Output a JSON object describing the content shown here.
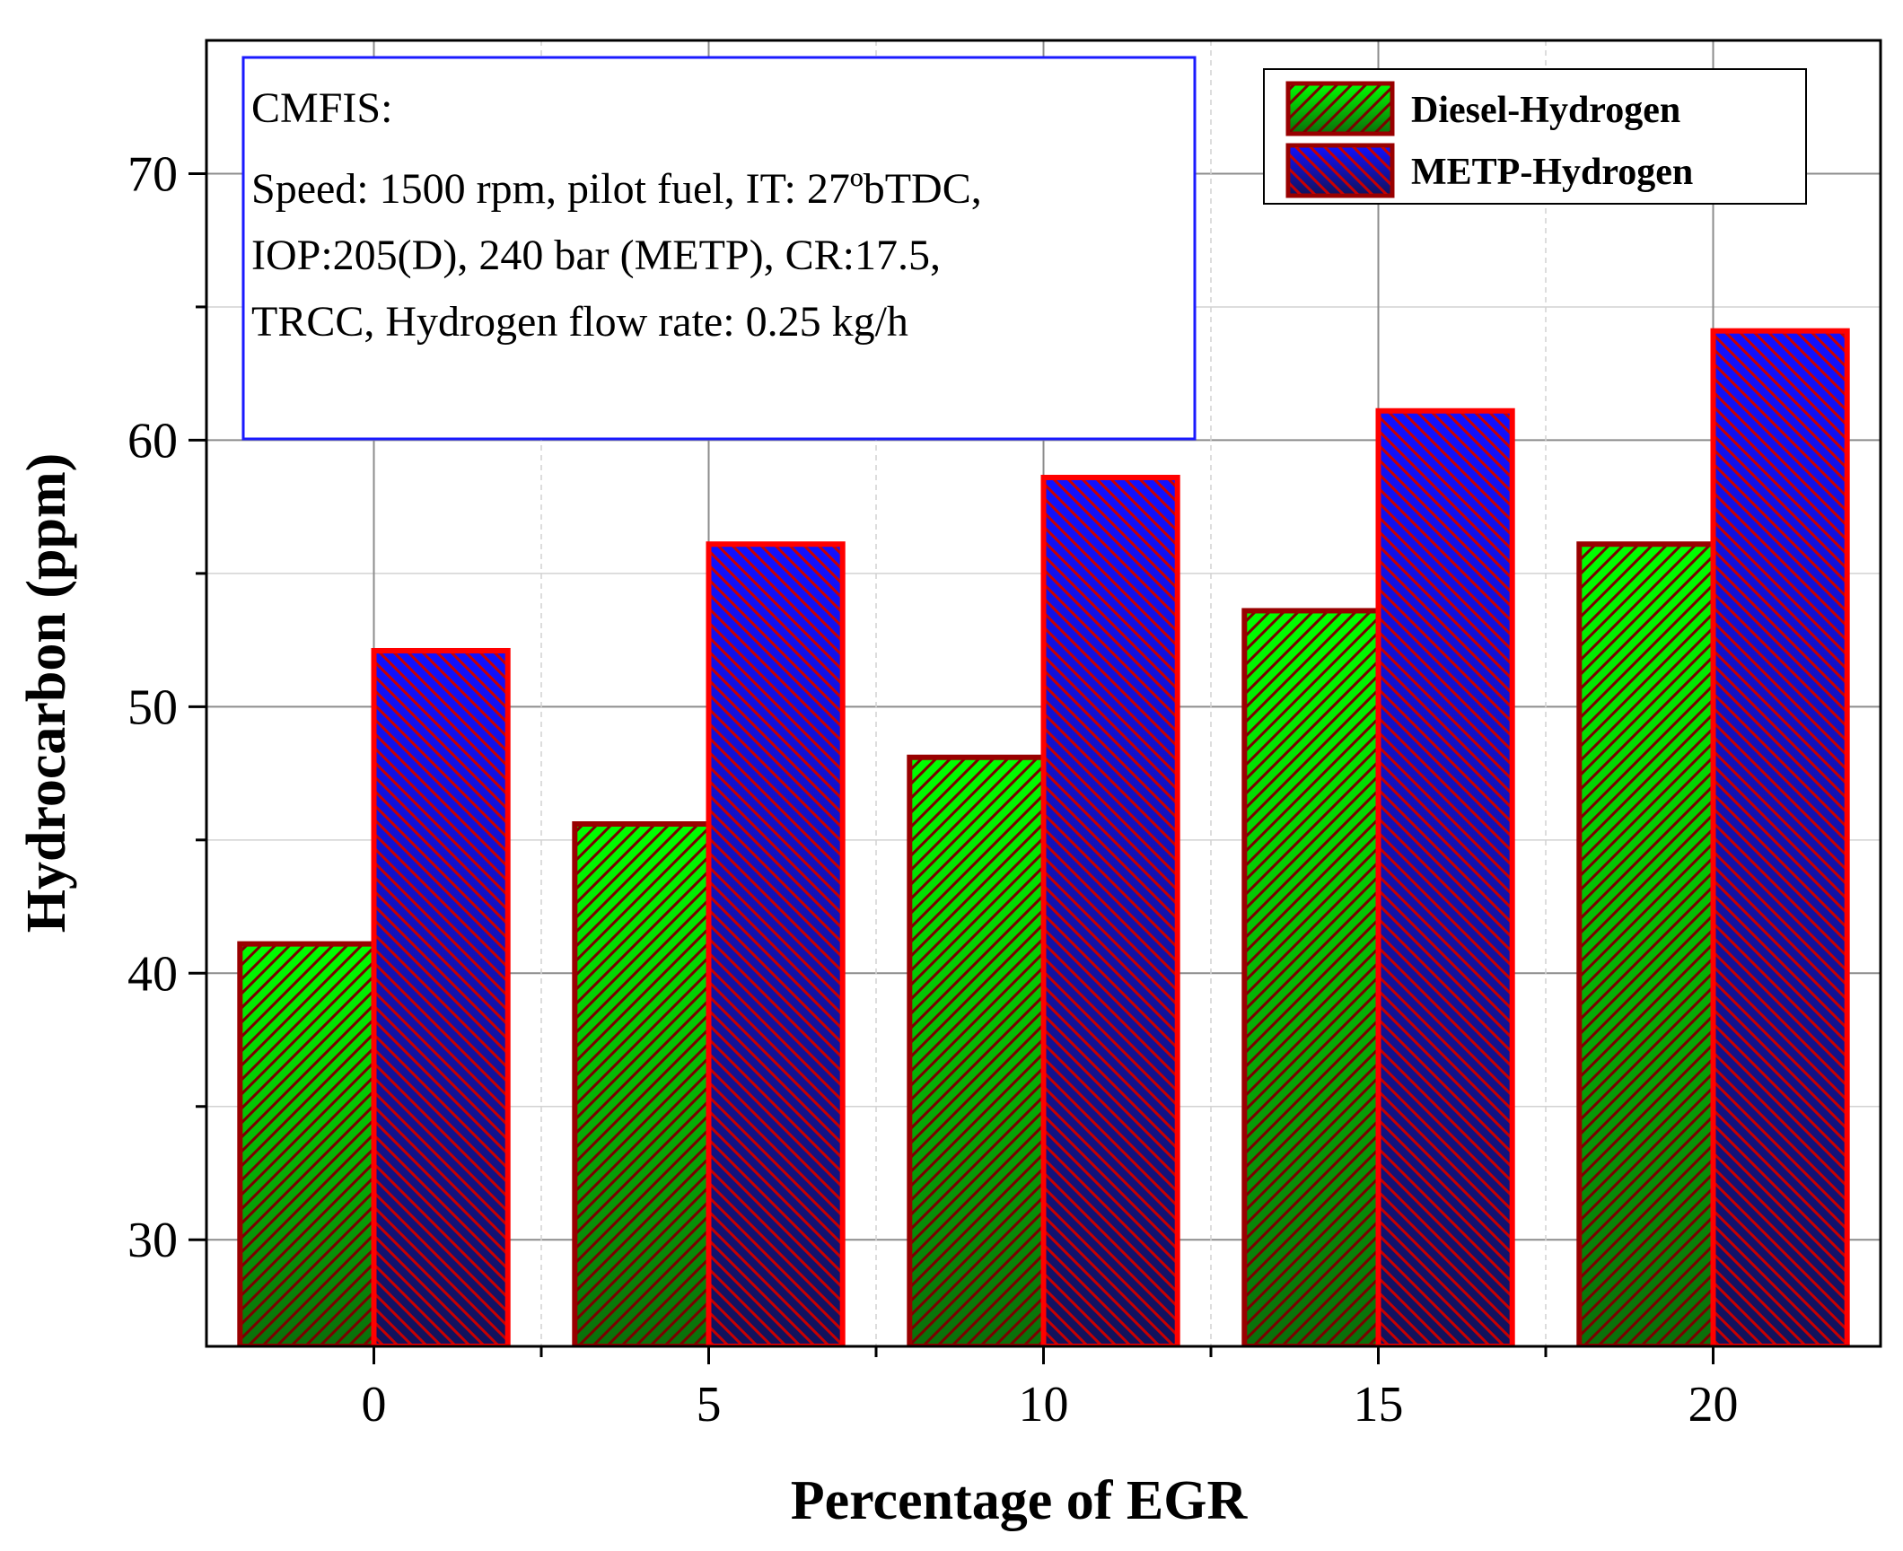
{
  "chart_data": {
    "type": "bar",
    "title": "",
    "xlabel": "Percentage of EGR",
    "ylabel": "Hydrocarbon (ppm)",
    "categories": [
      "0",
      "5",
      "10",
      "15",
      "20"
    ],
    "x": [
      0,
      5,
      10,
      15,
      20
    ],
    "xlim": [
      -2.5,
      22.5
    ],
    "ylim": [
      26,
      75
    ],
    "yticks": [
      30,
      40,
      50,
      60,
      70
    ],
    "ytick_labels": [
      "30",
      "40",
      "50",
      "60",
      "70"
    ],
    "yminor": [
      35,
      45,
      55,
      65
    ],
    "xminor": [
      2.5,
      7.5,
      12.5,
      17.5
    ],
    "grid": true,
    "legend_position": "top-right",
    "series": [
      {
        "name": "Diesel-Hydrogen",
        "values": [
          41.1,
          45.6,
          48.1,
          53.6,
          56.1
        ],
        "fill_light": "#00ff00",
        "fill_dark": "#0a6e0a",
        "border": "#990000",
        "hatch": "#7a0000"
      },
      {
        "name": "METP-Hydrogen",
        "values": [
          52.1,
          56.1,
          58.6,
          61.1,
          64.1
        ],
        "fill_light": "#1111ff",
        "fill_dark": "#12125a",
        "border": "#ff0000",
        "hatch": "#c80000"
      }
    ],
    "annotation": {
      "lines": [
        "CMFIS:",
        "Speed: 1500 rpm, pilot fuel, IT: 27ºbTDC,",
        "IOP:205(D), 240 bar (METP), CR:17.5,",
        "TRCC, Hydrogen flow rate: 0.25 kg/h"
      ],
      "border_color": "#1a1aff"
    }
  }
}
